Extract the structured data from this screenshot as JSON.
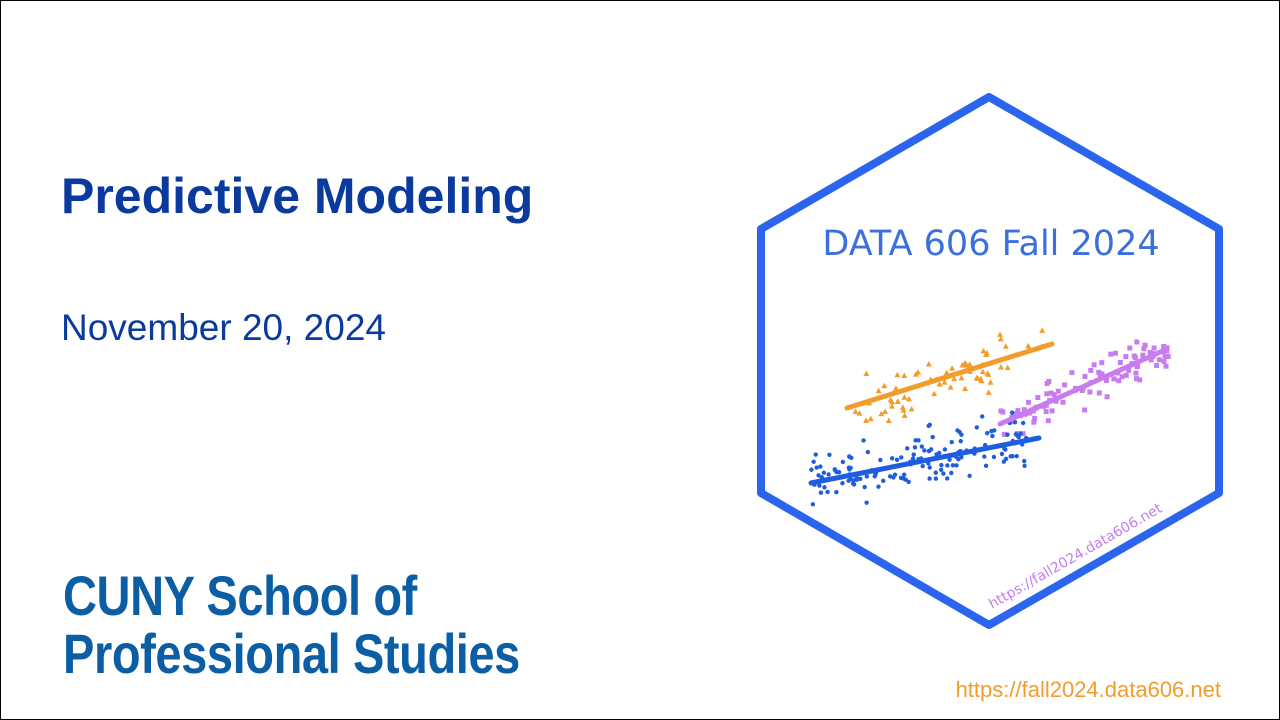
{
  "slide": {
    "title": "Predictive Modeling",
    "date": "November 20, 2024",
    "logo_line1": "CUNY School of",
    "logo_line2": "Professional Studies",
    "footer_url": "https://fall2024.data606.net"
  },
  "hex_sticker": {
    "title": "DATA 606 Fall 2024",
    "url": "https://fall2024.data606.net",
    "colors": {
      "border": "#2b65ee",
      "title": "#3b6fe0",
      "orange": "#f39c2b",
      "purple": "#c77cf0",
      "blue": "#1f5de0"
    },
    "chart_data": {
      "type": "scatter",
      "series": [
        {
          "marker": "triangle",
          "color": "orange"
        },
        {
          "marker": "square",
          "color": "purple"
        },
        {
          "marker": "circle",
          "color": "blue"
        }
      ]
    }
  },
  "colors": {
    "title": "#0a3a9e",
    "logo": "#0b5da4",
    "footer_url": "#f39c2b"
  }
}
